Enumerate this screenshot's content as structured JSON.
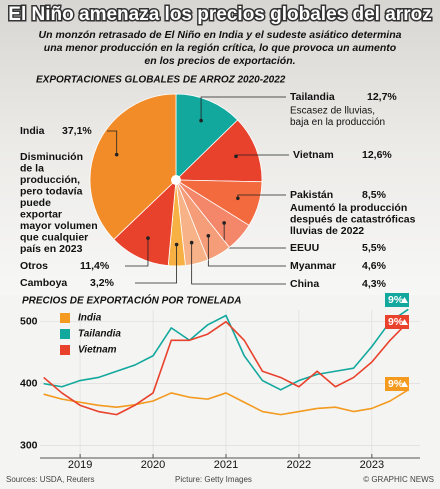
{
  "header": {
    "title": "El Niño amenaza los precios globales del arroz",
    "subtitle": [
      "Un monzón retrasado de El Niño en India y el sudeste asiático determina",
      "una menor producción en la región crítica, lo que provoca un aumento",
      "en los precios de exportación."
    ]
  },
  "chart_data": [
    {
      "type": "pie",
      "title": "EXPORTACIONES GLOBALES DE ARROZ 2020-2022",
      "categories": [
        "Tailandia",
        "Vietnam",
        "Pakistán",
        "EEUU",
        "Myanmar",
        "China",
        "Camboya",
        "Otros",
        "India"
      ],
      "values": [
        12.7,
        12.6,
        8.5,
        5.5,
        4.6,
        4.3,
        3.2,
        11.4,
        37.1
      ],
      "value_labels": [
        "12,7%",
        "12,6%",
        "8,5%",
        "5,5%",
        "4,6%",
        "4,3%",
        "3,2%",
        "11,4%",
        "37,1%"
      ],
      "colors": [
        "#13a89e",
        "#e8412c",
        "#f26a3d",
        "#f4876a",
        "#f59c78",
        "#f7b287",
        "#f7b043",
        "#e8412c",
        "#f28c28"
      ],
      "annotations": [
        [
          "Escasez de lluvias,",
          "baja en la producción"
        ],
        [
          "Aumentó la producción",
          "después de catastróficas",
          "lluvias de 2022"
        ],
        [
          "Disminución",
          "de la",
          "producción,",
          "pero todavía",
          "puede",
          "exportar",
          "mayor volumen",
          "que cualquier",
          "país en 2023"
        ]
      ]
    },
    {
      "type": "line",
      "title": "PRECIOS DE EXPORTACIÓN POR TONELADA",
      "x": [
        2018.5,
        2018.75,
        2019,
        2019.25,
        2019.5,
        2019.75,
        2020,
        2020.25,
        2020.5,
        2020.75,
        2021,
        2021.25,
        2021.5,
        2021.75,
        2022,
        2022.25,
        2022.5,
        2022.75,
        2023,
        2023.25,
        2023.5
      ],
      "xlim": [
        2018.45,
        2023.66
      ],
      "xticks": [
        2019,
        2020,
        2021,
        2022,
        2023
      ],
      "ylim": [
        280,
        535
      ],
      "yticks": [
        300,
        400,
        500
      ],
      "grid": true,
      "series": [
        {
          "name": "India",
          "color": "#f39a1f",
          "change_label": "9%",
          "values": [
            383,
            375,
            370,
            365,
            362,
            366,
            372,
            385,
            378,
            375,
            385,
            370,
            355,
            350,
            355,
            360,
            362,
            355,
            360,
            372,
            390
          ]
        },
        {
          "name": "Tailandia",
          "color": "#13a89e",
          "change_label": "9%",
          "values": [
            400,
            395,
            405,
            410,
            420,
            430,
            445,
            490,
            470,
            495,
            510,
            445,
            405,
            390,
            405,
            415,
            420,
            425,
            460,
            500,
            520
          ]
        },
        {
          "name": "Vietnam",
          "color": "#e8412c",
          "change_label": "9%",
          "values": [
            410,
            385,
            365,
            355,
            350,
            365,
            385,
            470,
            470,
            480,
            500,
            470,
            420,
            410,
            395,
            420,
            395,
            410,
            435,
            470,
            500
          ]
        }
      ]
    }
  ],
  "footer": {
    "sources": "Sources: USDA, Reuters",
    "picture": "Picture: Getty Images",
    "credit": "© GRAPHIC NEWS"
  }
}
